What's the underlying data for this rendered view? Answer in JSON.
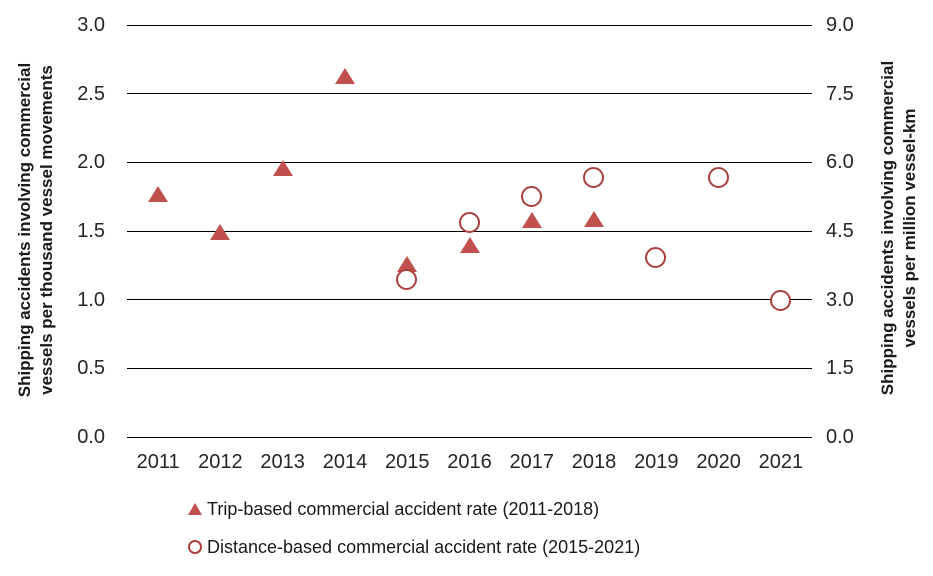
{
  "chart_data": {
    "type": "scatter",
    "categories": [
      "2011",
      "2012",
      "2013",
      "2014",
      "2015",
      "2016",
      "2017",
      "2018",
      "2019",
      "2020",
      "2021"
    ],
    "series": [
      {
        "name": "Trip-based commercial accident rate (2011-2018)",
        "axis": "left",
        "marker": "filled-triangle",
        "color": "#C0504D",
        "points": [
          {
            "x": "2011",
            "y": 1.77
          },
          {
            "x": "2012",
            "y": 1.49
          },
          {
            "x": "2013",
            "y": 1.96
          },
          {
            "x": "2014",
            "y": 2.63
          },
          {
            "x": "2015",
            "y": 1.26
          },
          {
            "x": "2016",
            "y": 1.4
          },
          {
            "x": "2017",
            "y": 1.58
          },
          {
            "x": "2018",
            "y": 1.59
          }
        ]
      },
      {
        "name": "Distance-based commercial accident rate (2015-2021)",
        "axis": "right",
        "marker": "open-circle",
        "color": "#A9403E",
        "points": [
          {
            "x": "2015",
            "y": 3.43
          },
          {
            "x": "2016",
            "y": 4.67
          },
          {
            "x": "2017",
            "y": 5.24
          },
          {
            "x": "2018",
            "y": 5.66
          },
          {
            "x": "2019",
            "y": 3.91
          },
          {
            "x": "2020",
            "y": 5.66
          },
          {
            "x": "2021",
            "y": 2.97
          }
        ]
      }
    ],
    "left_axis": {
      "title": "Shipping accidents involving commercial\nvessels per thousand vessel movements",
      "min": 0,
      "max": 3,
      "ticks": [
        "3.0",
        "2.5",
        "2.0",
        "1.5",
        "1.0",
        "0.5",
        "0.0"
      ]
    },
    "right_axis": {
      "title": "Shipping accidents involving commercial\nvessels per million vessel-km",
      "min": 0,
      "max": 9,
      "ticks": [
        "9.0",
        "7.5",
        "6.0",
        "4.5",
        "3.0",
        "1.5",
        "0.0"
      ]
    },
    "grid": true,
    "gridline_color": "#000000",
    "text_color": "#262626",
    "background": "#ffffff",
    "legend_position": "bottom-left"
  }
}
